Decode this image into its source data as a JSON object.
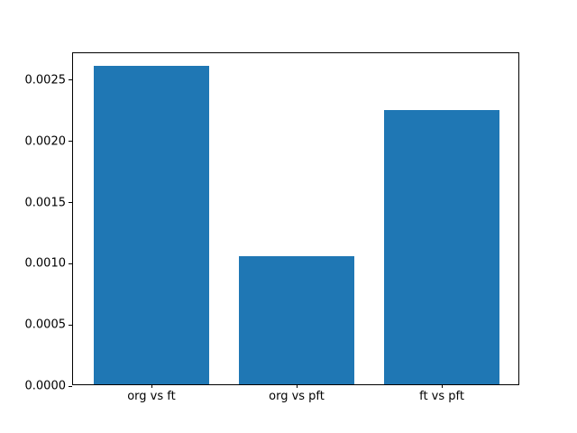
{
  "chart_data": {
    "type": "bar",
    "title": "",
    "xlabel": "",
    "ylabel": "",
    "categories": [
      "org vs ft",
      "org vs pft",
      "ft vs pft"
    ],
    "values": [
      0.0026,
      0.00105,
      0.00224
    ],
    "yticks": [
      {
        "value": 0.0,
        "label": "0.0000"
      },
      {
        "value": 0.0005,
        "label": "0.0005"
      },
      {
        "value": 0.001,
        "label": "0.0010"
      },
      {
        "value": 0.0015,
        "label": "0.0015"
      },
      {
        "value": 0.002,
        "label": "0.0020"
      }
    ],
    "ytick_top": {
      "value": 0.0025,
      "label": "0.0025"
    },
    "ylim": [
      0,
      0.002722
    ],
    "xlim": [
      -0.54,
      2.54
    ],
    "bar_width_fraction": 0.8,
    "grid": false,
    "legend": null,
    "bar_color": "#1f77b4",
    "spine_color": "#000000",
    "background_color": "#ffffff"
  }
}
